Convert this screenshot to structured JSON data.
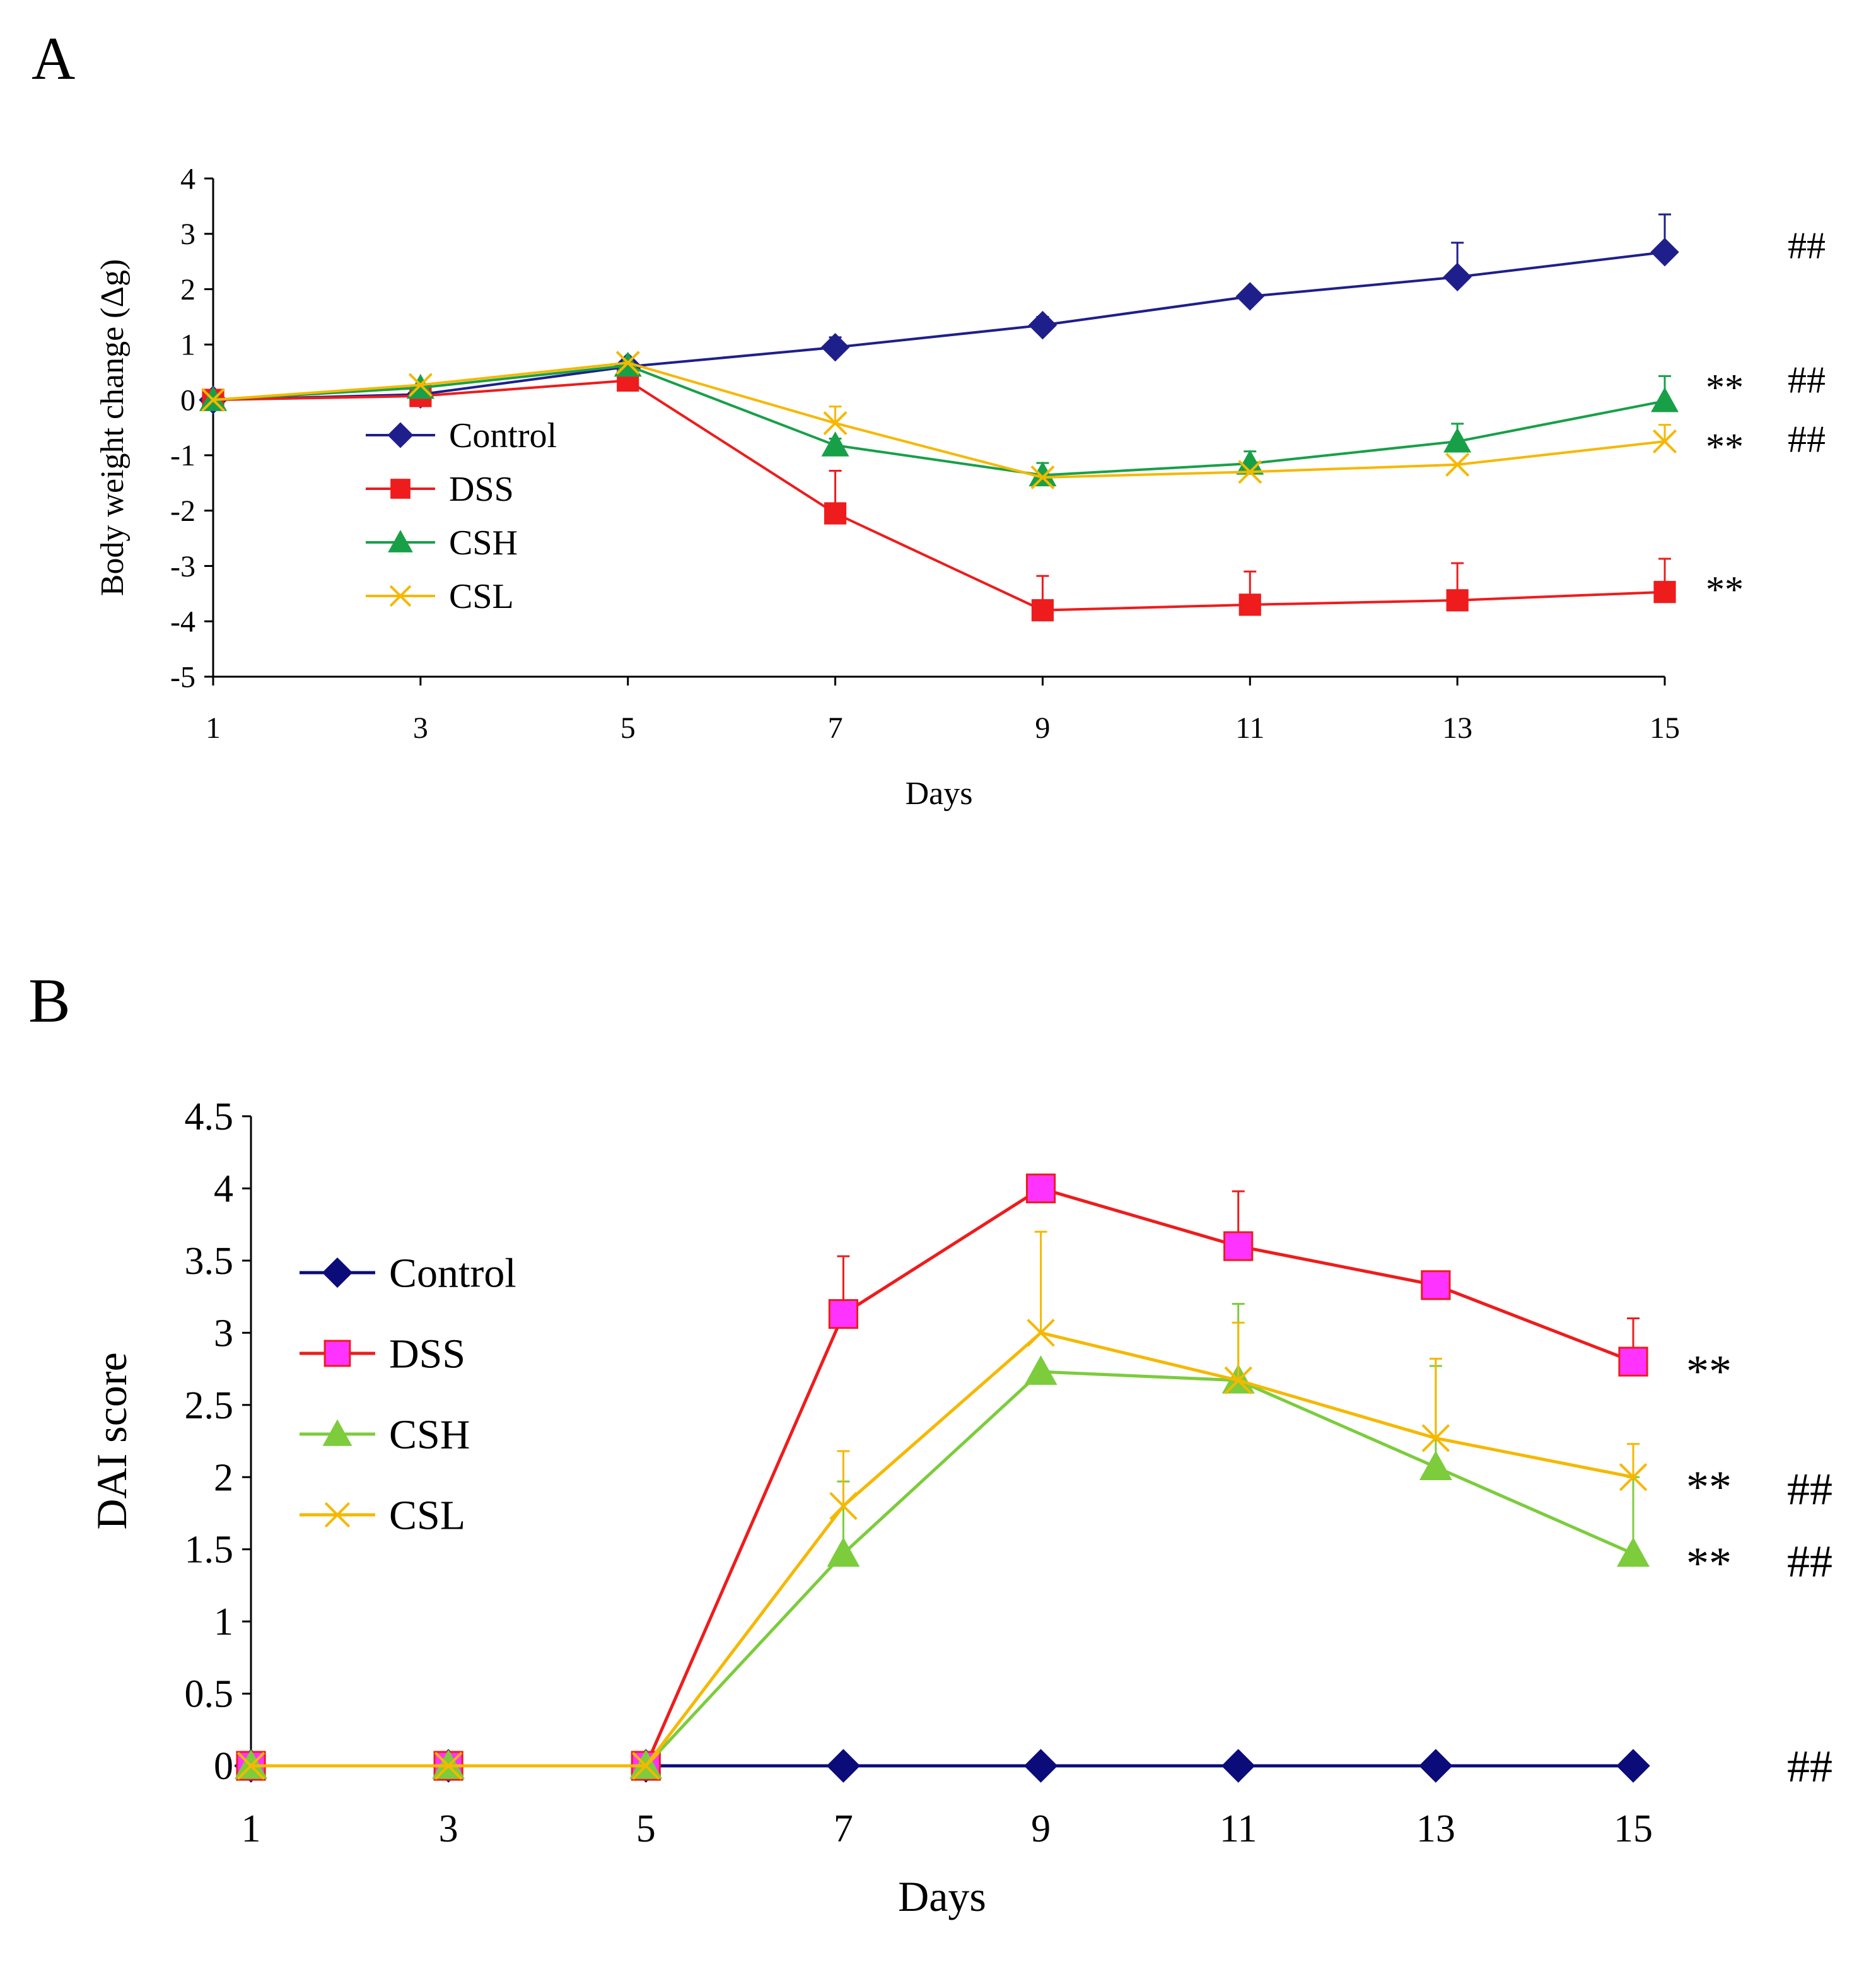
{
  "chart_data": [
    {
      "panel_label": "A",
      "type": "line",
      "xlabel": "Days",
      "ylabel": "Body weight change (Δg)",
      "x": [
        1,
        3,
        5,
        7,
        9,
        11,
        13,
        15
      ],
      "x_ticks": [
        "1",
        "3",
        "5",
        "7",
        "9",
        "11",
        "13",
        "15"
      ],
      "ylim": [
        -5,
        4
      ],
      "y_ticks": [
        "-5",
        "-4",
        "-3",
        "-2",
        "-1",
        "0",
        "1",
        "2",
        "3",
        "4"
      ],
      "grid": false,
      "legend_position": "left",
      "series": [
        {
          "name": "Control",
          "color": "#1f1f8c",
          "marker": "diamond",
          "values": [
            0,
            0.1,
            0.6,
            0.95,
            1.35,
            1.87,
            2.22,
            2.67
          ],
          "errors": [
            0,
            0,
            0,
            0.18,
            0.15,
            0.12,
            0.62,
            0.68
          ]
        },
        {
          "name": "DSS",
          "color": "#ee1c1c",
          "marker": "square",
          "values": [
            0,
            0.07,
            0.35,
            -2.05,
            -3.8,
            -3.7,
            -3.62,
            -3.47
          ],
          "errors": [
            0,
            0,
            0,
            0.77,
            0.62,
            0.6,
            0.67,
            0.6
          ]
        },
        {
          "name": "CSH",
          "color": "#18a048",
          "marker": "triangle",
          "values": [
            0,
            0.22,
            0.62,
            -0.82,
            -1.36,
            -1.15,
            -0.75,
            -0.02
          ],
          "errors": [
            0,
            0,
            0,
            0.12,
            0.22,
            0.22,
            0.32,
            0.45
          ]
        },
        {
          "name": "CSL",
          "color": "#f5b800",
          "marker": "x",
          "values": [
            0,
            0.27,
            0.67,
            -0.42,
            -1.4,
            -1.3,
            -1.17,
            -0.75
          ],
          "errors": [
            0,
            0,
            0,
            0.3,
            0,
            0,
            0,
            0.3
          ]
        }
      ],
      "annotations": [
        {
          "text": "##",
          "y": 2.8
        },
        {
          "text": "**",
          "y": 0.37
        },
        {
          "text": "##",
          "y": 0.37
        },
        {
          "text": "**",
          "y": -0.7
        },
        {
          "text": "##",
          "y": -0.7
        },
        {
          "text": "**",
          "y": -3.28
        }
      ]
    },
    {
      "panel_label": "B",
      "type": "line",
      "xlabel": "Days",
      "ylabel": "DAI score",
      "x": [
        1,
        3,
        5,
        7,
        9,
        11,
        13,
        15
      ],
      "x_ticks": [
        "1",
        "3",
        "5",
        "7",
        "9",
        "11",
        "13",
        "15"
      ],
      "ylim": [
        0,
        4.5
      ],
      "y_ticks": [
        "0",
        "0.5",
        "1",
        "1.5",
        "2",
        "2.5",
        "3",
        "3.5",
        "4",
        "4.5"
      ],
      "grid": false,
      "legend_position": "left",
      "series": [
        {
          "name": "Control",
          "color": "#0b0b7a",
          "marker": "diamond",
          "values": [
            0,
            0,
            0,
            0,
            0,
            0,
            0,
            0
          ],
          "errors": [
            0,
            0,
            0,
            0,
            0,
            0,
            0,
            0
          ]
        },
        {
          "name": "DSS",
          "color": "#ee1c1c",
          "marker": "square-magenta",
          "values": [
            0,
            0,
            0,
            3.13,
            4.0,
            3.6,
            3.33,
            2.8
          ],
          "errors": [
            0,
            0,
            0,
            0.4,
            0,
            0.38,
            0,
            0.3
          ]
        },
        {
          "name": "CSH",
          "color": "#7ccc3c",
          "marker": "triangle",
          "values": [
            0,
            0,
            0,
            1.47,
            2.73,
            2.67,
            2.07,
            1.47
          ],
          "errors": [
            0,
            0,
            0,
            0.5,
            0,
            0.53,
            0.7,
            0.53
          ]
        },
        {
          "name": "CSL",
          "color": "#f5b800",
          "marker": "x",
          "values": [
            0,
            0,
            0,
            1.8,
            3.0,
            2.67,
            2.27,
            2.0
          ],
          "errors": [
            0,
            0,
            0,
            0.38,
            0.7,
            0.4,
            0.55,
            0.23
          ]
        }
      ],
      "annotations": [
        {
          "text": "**",
          "y": 2.8
        },
        {
          "text": "**",
          "y": 2.0
        },
        {
          "text": "##",
          "y": 1.92
        },
        {
          "text": "**",
          "y": 1.47
        },
        {
          "text": "##",
          "y": 1.42
        },
        {
          "text": "##",
          "y": 0
        }
      ]
    }
  ]
}
